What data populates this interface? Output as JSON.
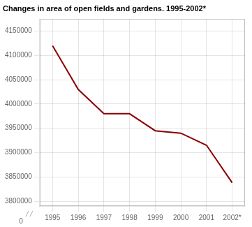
{
  "chart_data": {
    "type": "line",
    "title": "Changes in area of open fields and gardens. 1995-2002*",
    "categories": [
      "1995",
      "1996",
      "1997",
      "1998",
      "1999",
      "2000",
      "2001",
      "2002*"
    ],
    "values": [
      4120000,
      4030000,
      3980000,
      3980000,
      3945000,
      3940000,
      3915000,
      3838000
    ],
    "color": "#8B0000",
    "ylim": [
      3790000,
      4175000
    ],
    "yticks": [
      3800000,
      3850000,
      3900000,
      3950000,
      4000000,
      4050000,
      4100000,
      4150000
    ],
    "grid": true,
    "annotations": [
      "0"
    ]
  }
}
